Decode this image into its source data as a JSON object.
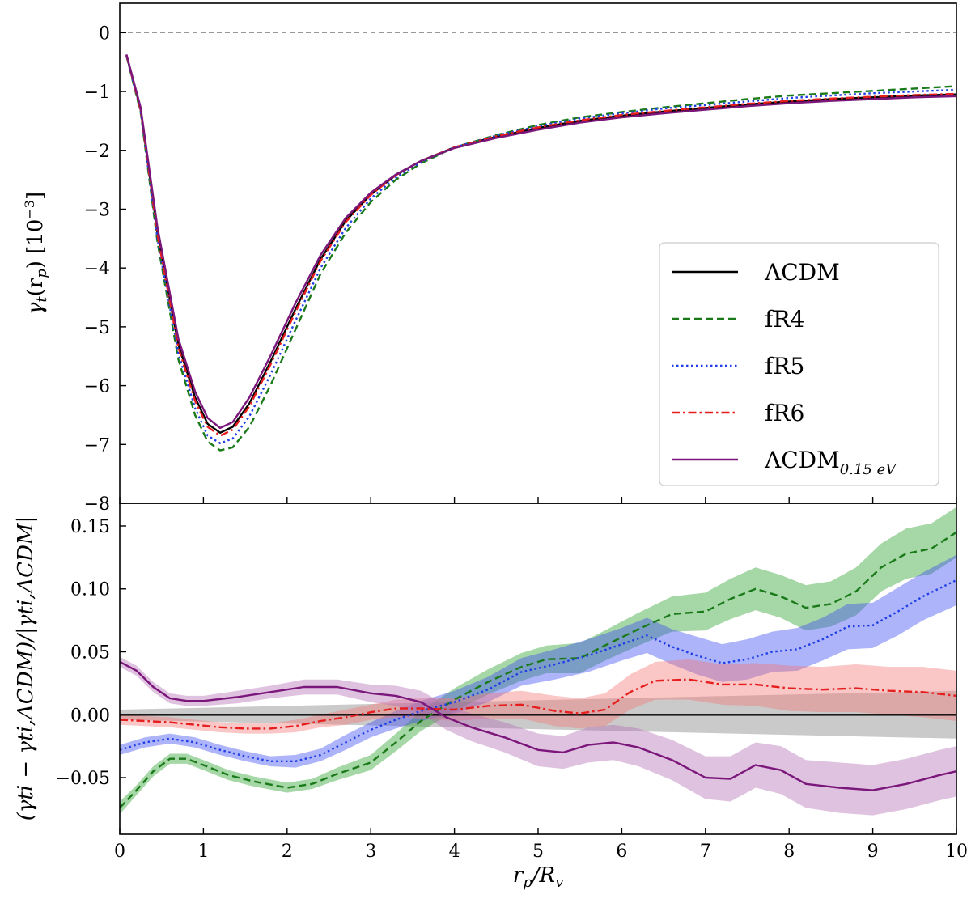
{
  "chart_data": [
    {
      "type": "line",
      "panel": "top",
      "ylabel": "γt(rp) [10−3]",
      "xlim": [
        0,
        10
      ],
      "ylim": [
        -8,
        0.5
      ],
      "yticks": [
        0,
        -1,
        -2,
        -3,
        -4,
        -5,
        -6,
        -7,
        -8
      ],
      "ytick_labels": [
        "0",
        "−1",
        "−2",
        "−3",
        "−4",
        "−5",
        "−6",
        "−7",
        "−8"
      ],
      "reference_line": {
        "y": 0,
        "style": "dashed",
        "color": "#999999"
      },
      "legend": {
        "placement": "center-right"
      },
      "series": [
        {
          "name": "ΛCDM",
          "color": "#000000",
          "style": "solid",
          "x": [
            0.08,
            0.25,
            0.45,
            0.7,
            0.9,
            1.05,
            1.2,
            1.35,
            1.55,
            1.8,
            2.1,
            2.4,
            2.7,
            3.0,
            3.3,
            3.6,
            4.0,
            4.5,
            5.0,
            5.5,
            6.0,
            6.5,
            7.0,
            7.5,
            8.0,
            8.5,
            9.0,
            9.5,
            10.0
          ],
          "y": [
            -0.38,
            -1.3,
            -3.4,
            -5.3,
            -6.2,
            -6.65,
            -6.8,
            -6.7,
            -6.3,
            -5.6,
            -4.7,
            -3.85,
            -3.2,
            -2.75,
            -2.42,
            -2.18,
            -1.95,
            -1.77,
            -1.62,
            -1.5,
            -1.41,
            -1.34,
            -1.28,
            -1.22,
            -1.17,
            -1.13,
            -1.1,
            -1.07,
            -1.05
          ]
        },
        {
          "name": "fR4",
          "color": "#1a7a1a",
          "style": "dashed",
          "x": [
            0.08,
            0.25,
            0.45,
            0.7,
            0.9,
            1.05,
            1.2,
            1.35,
            1.55,
            1.8,
            2.1,
            2.4,
            2.7,
            3.0,
            3.3,
            3.6,
            4.0,
            4.5,
            5.0,
            5.5,
            6.0,
            6.5,
            7.0,
            7.5,
            8.0,
            8.5,
            9.0,
            9.5,
            10.0
          ],
          "y": [
            -0.4,
            -1.35,
            -3.55,
            -5.55,
            -6.5,
            -6.95,
            -7.1,
            -7.05,
            -6.7,
            -6.0,
            -5.05,
            -4.1,
            -3.4,
            -2.88,
            -2.5,
            -2.22,
            -1.95,
            -1.74,
            -1.57,
            -1.44,
            -1.35,
            -1.27,
            -1.2,
            -1.13,
            -1.07,
            -1.03,
            -0.99,
            -0.95,
            -0.91
          ]
        },
        {
          "name": "fR5",
          "color": "#1f3ee6",
          "style": "dotted",
          "x": [
            0.08,
            0.25,
            0.45,
            0.7,
            0.9,
            1.05,
            1.2,
            1.35,
            1.55,
            1.8,
            2.1,
            2.4,
            2.7,
            3.0,
            3.3,
            3.6,
            4.0,
            4.5,
            5.0,
            5.5,
            6.0,
            6.5,
            7.0,
            7.5,
            8.0,
            8.5,
            9.0,
            9.5,
            10.0
          ],
          "y": [
            -0.39,
            -1.33,
            -3.5,
            -5.45,
            -6.38,
            -6.85,
            -6.98,
            -6.9,
            -6.52,
            -5.82,
            -4.9,
            -4.0,
            -3.32,
            -2.82,
            -2.46,
            -2.2,
            -1.95,
            -1.75,
            -1.59,
            -1.46,
            -1.37,
            -1.29,
            -1.23,
            -1.17,
            -1.11,
            -1.07,
            -1.03,
            -1.0,
            -0.97
          ]
        },
        {
          "name": "fR6",
          "color": "#e61e1e",
          "style": "dashdot",
          "x": [
            0.08,
            0.25,
            0.45,
            0.7,
            0.9,
            1.05,
            1.2,
            1.35,
            1.55,
            1.8,
            2.1,
            2.4,
            2.7,
            3.0,
            3.3,
            3.6,
            4.0,
            4.5,
            5.0,
            5.5,
            6.0,
            6.5,
            7.0,
            7.5,
            8.0,
            8.5,
            9.0,
            9.5,
            10.0
          ],
          "y": [
            -0.38,
            -1.31,
            -3.43,
            -5.35,
            -6.26,
            -6.7,
            -6.85,
            -6.75,
            -6.35,
            -5.65,
            -4.75,
            -3.88,
            -3.22,
            -2.76,
            -2.42,
            -2.18,
            -1.95,
            -1.76,
            -1.61,
            -1.49,
            -1.4,
            -1.33,
            -1.27,
            -1.21,
            -1.16,
            -1.12,
            -1.09,
            -1.06,
            -1.04
          ]
        },
        {
          "name": "ΛCDM0.15 eV",
          "color": "#7b167b",
          "style": "solid",
          "x": [
            0.08,
            0.25,
            0.45,
            0.7,
            0.9,
            1.05,
            1.2,
            1.35,
            1.55,
            1.8,
            2.1,
            2.4,
            2.7,
            3.0,
            3.3,
            3.6,
            4.0,
            4.5,
            5.0,
            5.5,
            6.0,
            6.5,
            7.0,
            7.5,
            8.0,
            8.5,
            9.0,
            9.5,
            10.0
          ],
          "y": [
            -0.37,
            -1.27,
            -3.3,
            -5.2,
            -6.1,
            -6.55,
            -6.72,
            -6.62,
            -6.2,
            -5.5,
            -4.6,
            -3.78,
            -3.15,
            -2.72,
            -2.41,
            -2.18,
            -1.96,
            -1.79,
            -1.65,
            -1.53,
            -1.44,
            -1.37,
            -1.31,
            -1.25,
            -1.2,
            -1.16,
            -1.13,
            -1.1,
            -1.08
          ]
        }
      ]
    },
    {
      "type": "line",
      "panel": "bottom",
      "xlabel": "rp/Rv",
      "ylabel": "(γti − γti,ΛCDM)/|γti,ΛCDM|",
      "xlim": [
        0,
        10
      ],
      "ylim": [
        -0.095,
        0.168
      ],
      "xticks": [
        0,
        1,
        2,
        3,
        4,
        5,
        6,
        7,
        8,
        9,
        10
      ],
      "xtick_labels": [
        "0",
        "1",
        "2",
        "3",
        "4",
        "5",
        "6",
        "7",
        "8",
        "9",
        "10"
      ],
      "yticks": [
        0.15,
        0.1,
        0.05,
        0.0,
        -0.05
      ],
      "ytick_labels": [
        "0.15",
        "0.10",
        "0.05",
        "0.00",
        "−0.05"
      ],
      "band": {
        "x": [
          0,
          10
        ],
        "lower": [
          -0.005,
          -0.02
        ],
        "upper": [
          0.005,
          0.02
        ],
        "color": "#808080"
      },
      "series": [
        {
          "name": "ΛCDM",
          "color": "#000000",
          "style": "solid",
          "band_color": "#808080",
          "x": [
            0,
            10
          ],
          "y": [
            0.0,
            0.0
          ],
          "err": [
            0.004,
            0.019
          ]
        },
        {
          "name": "fR4",
          "color": "#1a7a1a",
          "style": "dashed",
          "band_color": "#2ca02c",
          "x": [
            0,
            0.2,
            0.4,
            0.6,
            0.8,
            1.0,
            1.3,
            1.6,
            2.0,
            2.3,
            2.6,
            3.0,
            3.3,
            3.6,
            4.0,
            4.4,
            4.8,
            5.1,
            5.5,
            5.8,
            6.2,
            6.6,
            7.0,
            7.3,
            7.6,
            7.9,
            8.2,
            8.5,
            8.8,
            9.1,
            9.4,
            9.7,
            10.0
          ],
          "y": [
            -0.074,
            -0.06,
            -0.045,
            -0.035,
            -0.035,
            -0.04,
            -0.048,
            -0.053,
            -0.058,
            -0.055,
            -0.047,
            -0.038,
            -0.022,
            -0.005,
            0.012,
            0.026,
            0.038,
            0.044,
            0.045,
            0.055,
            0.068,
            0.08,
            0.082,
            0.092,
            0.1,
            0.094,
            0.085,
            0.088,
            0.098,
            0.117,
            0.128,
            0.132,
            0.145
          ],
          "err": [
            0.005,
            0.004,
            0.004,
            0.004,
            0.004,
            0.004,
            0.004,
            0.004,
            0.004,
            0.004,
            0.005,
            0.006,
            0.007,
            0.008,
            0.009,
            0.01,
            0.011,
            0.011,
            0.012,
            0.012,
            0.013,
            0.014,
            0.015,
            0.016,
            0.017,
            0.017,
            0.018,
            0.018,
            0.019,
            0.019,
            0.02,
            0.02,
            0.02
          ]
        },
        {
          "name": "fR5",
          "color": "#1f3ee6",
          "style": "dotted",
          "band_color": "#3b4cf0",
          "x": [
            0,
            0.3,
            0.6,
            0.9,
            1.2,
            1.5,
            1.8,
            2.1,
            2.4,
            2.7,
            3.0,
            3.3,
            3.6,
            4.0,
            4.4,
            4.8,
            5.2,
            5.6,
            6.0,
            6.3,
            6.6,
            6.9,
            7.2,
            7.5,
            7.8,
            8.1,
            8.4,
            8.7,
            9.0,
            9.3,
            9.6,
            10.0
          ],
          "y": [
            -0.028,
            -0.022,
            -0.019,
            -0.022,
            -0.028,
            -0.033,
            -0.037,
            -0.037,
            -0.032,
            -0.022,
            -0.012,
            -0.004,
            0.003,
            0.01,
            0.02,
            0.034,
            0.04,
            0.047,
            0.056,
            0.063,
            0.054,
            0.047,
            0.041,
            0.044,
            0.05,
            0.052,
            0.06,
            0.07,
            0.071,
            0.082,
            0.094,
            0.107
          ],
          "err": [
            0.004,
            0.004,
            0.004,
            0.004,
            0.004,
            0.004,
            0.004,
            0.005,
            0.005,
            0.006,
            0.006,
            0.007,
            0.008,
            0.009,
            0.01,
            0.011,
            0.012,
            0.013,
            0.013,
            0.014,
            0.014,
            0.015,
            0.015,
            0.016,
            0.016,
            0.017,
            0.017,
            0.018,
            0.018,
            0.019,
            0.019,
            0.02
          ]
        },
        {
          "name": "fR6",
          "color": "#e61e1e",
          "style": "dashdot",
          "band_color": "#f27878",
          "x": [
            0,
            0.3,
            0.6,
            0.9,
            1.2,
            1.5,
            1.8,
            2.1,
            2.4,
            2.7,
            3.0,
            3.3,
            3.6,
            4.0,
            4.4,
            4.8,
            5.2,
            5.5,
            5.8,
            6.1,
            6.4,
            6.8,
            7.2,
            7.6,
            8.0,
            8.4,
            8.8,
            9.2,
            9.6,
            10.0
          ],
          "y": [
            -0.004,
            -0.005,
            -0.006,
            -0.008,
            -0.01,
            -0.011,
            -0.011,
            -0.009,
            -0.005,
            -0.002,
            0.002,
            0.005,
            0.005,
            0.004,
            0.007,
            0.008,
            0.003,
            0.001,
            0.004,
            0.018,
            0.027,
            0.028,
            0.024,
            0.024,
            0.021,
            0.02,
            0.021,
            0.019,
            0.018,
            0.015
          ],
          "err": [
            0.004,
            0.004,
            0.004,
            0.004,
            0.004,
            0.004,
            0.004,
            0.005,
            0.005,
            0.006,
            0.006,
            0.007,
            0.008,
            0.009,
            0.01,
            0.011,
            0.012,
            0.012,
            0.013,
            0.014,
            0.015,
            0.016,
            0.016,
            0.017,
            0.018,
            0.018,
            0.019,
            0.019,
            0.02,
            0.02
          ]
        },
        {
          "name": "ΛCDM0.15 eV",
          "color": "#7b167b",
          "style": "solid",
          "band_color": "#b36db3",
          "x": [
            0,
            0.2,
            0.4,
            0.6,
            0.8,
            1.0,
            1.4,
            1.8,
            2.2,
            2.6,
            3.0,
            3.3,
            3.6,
            3.9,
            4.2,
            4.6,
            5.0,
            5.3,
            5.6,
            5.9,
            6.2,
            6.6,
            7.0,
            7.3,
            7.6,
            7.9,
            8.2,
            8.6,
            9.0,
            9.4,
            9.8,
            10.0
          ],
          "y": [
            0.042,
            0.035,
            0.022,
            0.013,
            0.011,
            0.011,
            0.014,
            0.018,
            0.022,
            0.022,
            0.017,
            0.015,
            0.01,
            -0.002,
            -0.01,
            -0.018,
            -0.028,
            -0.03,
            -0.024,
            -0.022,
            -0.026,
            -0.036,
            -0.05,
            -0.051,
            -0.04,
            -0.044,
            -0.055,
            -0.058,
            -0.06,
            -0.055,
            -0.048,
            -0.045
          ],
          "err": [
            0.004,
            0.004,
            0.004,
            0.004,
            0.004,
            0.004,
            0.005,
            0.005,
            0.006,
            0.006,
            0.007,
            0.008,
            0.009,
            0.01,
            0.011,
            0.012,
            0.013,
            0.013,
            0.014,
            0.014,
            0.015,
            0.016,
            0.017,
            0.018,
            0.018,
            0.019,
            0.019,
            0.02,
            0.02,
            0.02,
            0.02,
            0.02
          ]
        }
      ]
    }
  ],
  "legend": {
    "entries": [
      {
        "label_main": "ΛCDM",
        "label_sub": "",
        "color": "#000000",
        "style": "solid"
      },
      {
        "label_main": "fR4",
        "label_sub": "",
        "color": "#1a7a1a",
        "style": "dashed"
      },
      {
        "label_main": "fR5",
        "label_sub": "",
        "color": "#1f3ee6",
        "style": "dotted"
      },
      {
        "label_main": "fR6",
        "label_sub": "",
        "color": "#e61e1e",
        "style": "dashdot"
      },
      {
        "label_main": "ΛCDM",
        "label_sub": "0.15 eV",
        "color": "#7b167b",
        "style": "solid"
      }
    ]
  },
  "labels": {
    "top_ylabel_main": "γ",
    "top_ylabel_sub": "t",
    "top_ylabel_paren": "(r",
    "top_ylabel_psub": "p",
    "top_ylabel_close": ") [10",
    "top_ylabel_exp": "−3",
    "top_ylabel_end": "]",
    "bottom_ylabel": "(γti − γti,ΛCDM)/|γti,ΛCDM|",
    "xlabel_r": "r",
    "xlabel_p": "p",
    "xlabel_slash": "/R",
    "xlabel_v": "v"
  }
}
